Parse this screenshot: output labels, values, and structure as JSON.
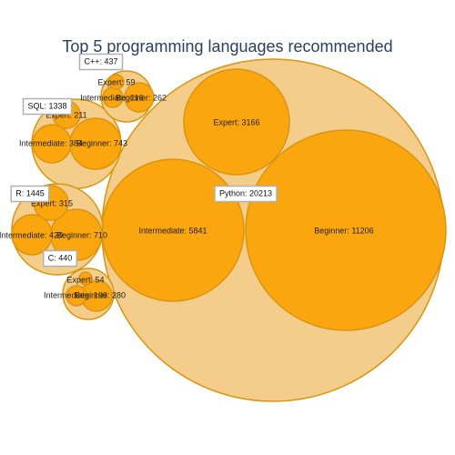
{
  "chart_data": {
    "type": "packed-bubble",
    "title": "Top 5 programming languages recommended",
    "colors": {
      "parent_fill": "#f5cd8a",
      "child_fill": "#fba50f",
      "stroke": "#d89510",
      "title": "#2a3f5f"
    },
    "series": [
      {
        "name": "Python",
        "label": "Python: 20213",
        "total": 20213,
        "children": [
          {
            "name": "Beginner",
            "label": "Beginner: 11206",
            "value": 11206
          },
          {
            "name": "Intermediate",
            "label": "Intermediate: 5841",
            "value": 5841
          },
          {
            "name": "Expert",
            "label": "Expert: 3166",
            "value": 3166
          }
        ]
      },
      {
        "name": "SQL",
        "label": "SQL: 1338",
        "total": 1338,
        "children": [
          {
            "name": "Beginner",
            "label": "Beginner: 743",
            "value": 743
          },
          {
            "name": "Intermediate",
            "label": "Intermediate: 384",
            "value": 384
          },
          {
            "name": "Expert",
            "label": "Expert: 211",
            "value": 211
          }
        ]
      },
      {
        "name": "R",
        "label": "R: 1445",
        "total": 1445,
        "children": [
          {
            "name": "Beginner",
            "label": "Beginner: 710",
            "value": 710
          },
          {
            "name": "Intermediate",
            "label": "Intermediate: 420",
            "value": 420
          },
          {
            "name": "Expert",
            "label": "Expert: 315",
            "value": 315
          }
        ]
      },
      {
        "name": "C++",
        "label": "C++: 437",
        "total": 437,
        "children": [
          {
            "name": "Beginner",
            "label": "Beginner: 262",
            "value": 262
          },
          {
            "name": "Intermediate",
            "label": "Intermediate: 116",
            "value": 116
          },
          {
            "name": "Expert",
            "label": "Expert: 59",
            "value": 59
          }
        ]
      },
      {
        "name": "C",
        "label": "C: 440",
        "total": 440,
        "children": [
          {
            "name": "Beginner",
            "label": "Beginner: 280",
            "value": 280
          },
          {
            "name": "Intermediate",
            "label": "Intermediate: 106",
            "value": 106
          },
          {
            "name": "Expert",
            "label": "Expert: 54",
            "value": 54
          }
        ]
      }
    ]
  }
}
